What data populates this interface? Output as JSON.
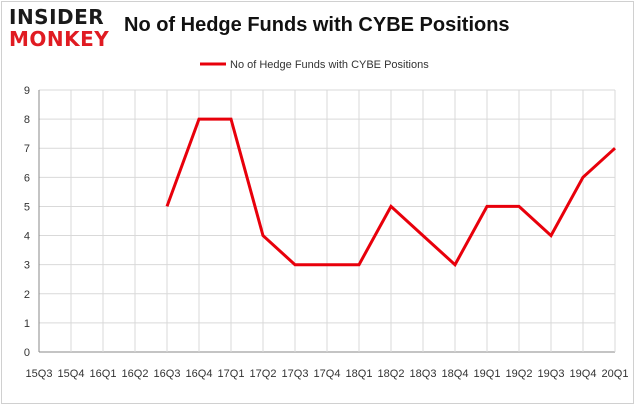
{
  "logo": {
    "line1": "INSIDER",
    "line2": "MONKEY"
  },
  "colors": {
    "series": "#e8000b",
    "grid": "#d9d9d9",
    "axis": "#888888",
    "logo_red": "#e01b22"
  },
  "chart_data": {
    "type": "line",
    "title": "No of Hedge Funds with CYBE Positions",
    "legend": "top-center",
    "grid": true,
    "ylim": [
      0,
      9
    ],
    "yticks": [
      0,
      1,
      2,
      3,
      4,
      5,
      6,
      7,
      8,
      9
    ],
    "categories": [
      "2015Q3",
      "2015Q4",
      "2016Q1",
      "2016Q2",
      "2016Q3",
      "2016Q4",
      "2017Q1",
      "2017Q2",
      "2017Q3",
      "2017Q4",
      "2018Q1",
      "2018Q2",
      "2018Q3",
      "2018Q4",
      "2019Q1",
      "2019Q2",
      "2019Q3",
      "2019Q4",
      "2020Q1"
    ],
    "tick_labels": [
      "15Q3",
      "15Q4",
      "16Q1",
      "16Q2",
      "16Q3",
      "16Q4",
      "17Q1",
      "17Q2",
      "17Q3",
      "17Q4",
      "18Q1",
      "18Q2",
      "18Q3",
      "18Q4",
      "19Q1",
      "19Q2",
      "19Q3",
      "19Q4",
      "20Q1"
    ],
    "series": [
      {
        "name": "No of Hedge Funds with CYBE Positions",
        "values": [
          null,
          null,
          null,
          null,
          5,
          8,
          8,
          4,
          3,
          3,
          3,
          5,
          4,
          3,
          5,
          5,
          4,
          6,
          7
        ]
      }
    ]
  }
}
